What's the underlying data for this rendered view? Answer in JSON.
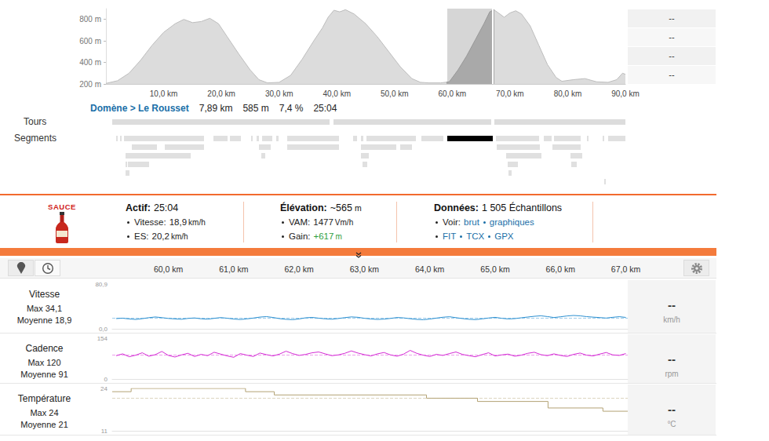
{
  "segment_header": {
    "name": "Domène > Le Rousset",
    "items": [
      "7,89 km",
      "585 m",
      "7,4 %",
      "25:04"
    ]
  },
  "side_panel": [
    "--",
    "--",
    "--",
    "--"
  ],
  "track_labels": {
    "tours": "Tours",
    "segments": "Segments"
  },
  "highlight": [
    59.14,
    67.03
  ],
  "tours": [
    [
      1.1,
      38.7
    ],
    [
      39.4,
      66.8
    ],
    [
      67.3,
      90.0
    ]
  ],
  "segments": [
    [
      [
        1.8,
        2.0
      ],
      [
        2.4,
        2.7
      ],
      [
        3.1,
        17.0
      ],
      [
        18.6,
        21.1
      ],
      [
        21.5,
        23.4
      ],
      [
        25.2,
        25.4
      ],
      [
        26.1,
        26.5
      ],
      [
        27.1,
        28.8
      ],
      [
        29.5,
        29.9
      ],
      [
        31.4,
        40.4
      ],
      [
        42.8,
        43.5
      ],
      [
        44.2,
        44.6
      ],
      [
        45.1,
        53.7
      ],
      [
        54.7,
        58.5
      ],
      [
        67.6,
        75.0
      ],
      [
        75.9,
        77.2
      ],
      [
        77.6,
        82.2
      ],
      [
        83.3,
        83.6
      ],
      [
        86.1,
        86.3
      ],
      [
        87.0,
        90.0
      ]
    ],
    [
      [
        4.5,
        8.8
      ],
      [
        10.2,
        17.0
      ],
      [
        26.5,
        28.5
      ],
      [
        31.4,
        40.4
      ],
      [
        44.2,
        50.3
      ],
      [
        51.0,
        53.0
      ],
      [
        67.7,
        75.2
      ],
      [
        77.4,
        82.2
      ]
    ],
    [
      [
        3.4,
        14.7
      ],
      [
        26.9,
        27.6
      ],
      [
        44.2,
        45.5
      ],
      [
        69.3,
        75.4
      ],
      [
        80.5,
        82.5
      ]
    ],
    [
      [
        3.4,
        3.7
      ],
      [
        3.8,
        7.5
      ],
      [
        44.5,
        45.3
      ],
      [
        69.6,
        71.4
      ],
      [
        80.6,
        81.6
      ]
    ],
    [
      [
        3.4,
        4.1
      ],
      [
        69.7,
        70.3
      ]
    ],
    [
      [
        86.3,
        86.6
      ]
    ]
  ],
  "logo": "SAUCE",
  "stats": [
    {
      "label": "Actif:",
      "value": "25:04",
      "rows": [
        {
          "label": "Vitesse:",
          "value": "18,9",
          "unit": "km/h"
        },
        {
          "label": "ES:",
          "value": "20,2",
          "unit": "km/h"
        }
      ]
    },
    {
      "label": "Élévation:",
      "value": "~565",
      "unit": "m",
      "rows": [
        {
          "label": "VAM:",
          "value": "1477",
          "unit": "Vm/h"
        },
        {
          "label": "Gain:",
          "value": "+617",
          "unit": "m",
          "color": "#2e9e3e"
        }
      ]
    },
    {
      "label": "Données:",
      "value": "1 505 Échantillons",
      "rows": [
        {
          "label": "Voir:",
          "links": [
            "brut",
            "graphiques"
          ]
        },
        {
          "links": [
            "FIT",
            "TCX",
            "GPX"
          ]
        }
      ]
    }
  ],
  "chart_data": [
    {
      "type": "area",
      "color": "#dcdcdc",
      "x": [
        0,
        2,
        4,
        6,
        8,
        10,
        12,
        13.5,
        15,
        16.5,
        18,
        19.5,
        21,
        23,
        25,
        26.5,
        28,
        30,
        32,
        34,
        36,
        37.5,
        38.5,
        39.5,
        40.5,
        41.5,
        43,
        45,
        47,
        49,
        51,
        53,
        54.5,
        56,
        58,
        59.5,
        61,
        62.5,
        64,
        65.5,
        66.5,
        67.2,
        68,
        69,
        70,
        71,
        72,
        73.5,
        75,
        76.5,
        78,
        79,
        81,
        83,
        85,
        87,
        88.5,
        89.5,
        90
      ],
      "values": [
        205,
        230,
        300,
        420,
        560,
        680,
        760,
        800,
        770,
        780,
        810,
        760,
        640,
        480,
        330,
        240,
        210,
        215,
        280,
        430,
        600,
        720,
        820,
        885,
        870,
        890,
        850,
        760,
        640,
        500,
        360,
        250,
        215,
        210,
        210,
        220,
        330,
        460,
        610,
        760,
        870,
        890,
        860,
        820,
        860,
        880,
        850,
        740,
        560,
        380,
        260,
        225,
        240,
        250,
        220,
        215,
        240,
        300,
        290
      ],
      "xlim": [
        0,
        90
      ],
      "xticks": [
        {
          "value": 10,
          "label": "10,0 km"
        },
        {
          "value": 20,
          "label": "20,0 km"
        },
        {
          "value": 30,
          "label": "30,0 km"
        },
        {
          "value": 40,
          "label": "40,0 km"
        },
        {
          "value": 50,
          "label": "50,0 km"
        },
        {
          "value": 60,
          "label": "60,0 km"
        },
        {
          "value": 70,
          "label": "70,0 km"
        },
        {
          "value": 80,
          "label": "80,0 km"
        },
        {
          "value": 90,
          "label": "90,0 km"
        }
      ],
      "ylim": [
        200,
        900
      ],
      "yticks": [
        {
          "value": 200,
          "label": "200 m"
        },
        {
          "value": 400,
          "label": "400 m"
        },
        {
          "value": 600,
          "label": "600 m"
        },
        {
          "value": 800,
          "label": "800 m"
        }
      ]
    },
    {
      "type": "line",
      "title": "Vitesse",
      "max_label": "Max 34,1",
      "mean_label": "Moyenne 18,9",
      "mean": 18.9,
      "unit": "km/h",
      "readout": "--",
      "color": "#2b8fd0",
      "x": [
        59.2,
        59.3,
        59.4,
        59.5,
        59.6,
        59.7,
        59.8,
        59.9,
        60.0,
        60.1,
        60.2,
        60.3,
        60.4,
        60.5,
        60.6,
        60.7,
        60.8,
        60.9,
        61.0,
        61.1,
        61.2,
        61.3,
        61.4,
        61.5,
        61.6,
        61.7,
        61.8,
        61.9,
        62.0,
        62.1,
        62.2,
        62.3,
        62.4,
        62.5,
        62.6,
        62.7,
        62.8,
        62.9,
        63.0,
        63.1,
        63.2,
        63.3,
        63.4,
        63.5,
        63.6,
        63.7,
        63.8,
        63.9,
        64.0,
        64.1,
        64.2,
        64.3,
        64.4,
        64.5,
        64.6,
        64.7,
        64.8,
        64.9,
        65.0,
        65.1,
        65.2,
        65.3,
        65.4,
        65.5,
        65.6,
        65.7,
        65.8,
        65.9,
        66.0,
        66.1,
        66.2,
        66.3,
        66.4,
        66.5,
        66.6,
        66.7,
        66.8,
        66.9,
        67.0
      ],
      "values": [
        18.5,
        19.2,
        17.8,
        16.9,
        18.3,
        20.1,
        21.4,
        20.2,
        18.7,
        17.9,
        17.2,
        18.8,
        19.6,
        18.1,
        17.4,
        18.9,
        20.3,
        19.1,
        17.6,
        16.8,
        17.9,
        19.4,
        21.2,
        22.0,
        20.5,
        18.4,
        17.1,
        16.5,
        17.8,
        19.9,
        20.6,
        19.2,
        18.0,
        17.3,
        18.6,
        20.2,
        21.5,
        20.8,
        19.0,
        17.7,
        16.9,
        17.5,
        18.8,
        20.4,
        19.7,
        18.2,
        17.0,
        16.4,
        17.6,
        19.3,
        20.9,
        21.8,
        20.1,
        18.5,
        17.2,
        16.6,
        17.9,
        19.5,
        20.7,
        19.0,
        17.8,
        18.4,
        19.9,
        21.3,
        22.6,
        23.5,
        22.1,
        20.4,
        21.7,
        23.2,
        24.1,
        23.4,
        22.0,
        21.1,
        20.3,
        19.4,
        20.8,
        21.9,
        20.6
      ],
      "xlim": [
        59.14,
        67.03
      ],
      "xticks": [
        {
          "value": 60,
          "label": "60,0 km"
        },
        {
          "value": 61,
          "label": "61,0 km"
        },
        {
          "value": 62,
          "label": "62,0 km"
        },
        {
          "value": 63,
          "label": "63,0 km"
        },
        {
          "value": 64,
          "label": "64,0 km"
        },
        {
          "value": 65,
          "label": "65,0 km"
        },
        {
          "value": 66,
          "label": "66,0 km"
        },
        {
          "value": 67,
          "label": "67,0 km"
        }
      ],
      "ylim": [
        0,
        80.9
      ],
      "yticks": [
        {
          "value": 0,
          "label": "0,0"
        },
        {
          "value": 80.9,
          "label": "80,9"
        }
      ]
    },
    {
      "type": "line",
      "title": "Cadence",
      "max_label": "Max 120",
      "mean_label": "Moyenne 91",
      "mean": 91,
      "unit": "rpm",
      "readout": "--",
      "color": "#d42ad4",
      "x": [
        59.2,
        59.3,
        59.4,
        59.5,
        59.6,
        59.7,
        59.8,
        59.9,
        60.0,
        60.1,
        60.2,
        60.3,
        60.4,
        60.5,
        60.6,
        60.7,
        60.8,
        60.9,
        61.0,
        61.1,
        61.2,
        61.3,
        61.4,
        61.5,
        61.6,
        61.7,
        61.8,
        61.9,
        62.0,
        62.1,
        62.2,
        62.3,
        62.4,
        62.5,
        62.6,
        62.7,
        62.8,
        62.9,
        63.0,
        63.1,
        63.2,
        63.3,
        63.4,
        63.5,
        63.6,
        63.7,
        63.8,
        63.9,
        64.0,
        64.1,
        64.2,
        64.3,
        64.4,
        64.5,
        64.6,
        64.7,
        64.8,
        64.9,
        65.0,
        65.1,
        65.2,
        65.3,
        65.4,
        65.5,
        65.6,
        65.7,
        65.8,
        65.9,
        66.0,
        66.1,
        66.2,
        66.3,
        66.4,
        66.5,
        66.6,
        66.7,
        66.8,
        66.9,
        67.0
      ],
      "values": [
        88,
        95,
        84,
        90,
        99,
        86,
        92,
        104,
        89,
        83,
        91,
        97,
        85,
        93,
        88,
        101,
        94,
        87,
        82,
        96,
        90,
        85,
        98,
        92,
        87,
        94,
        105,
        96,
        89,
        93,
        99,
        102,
        95,
        88,
        91,
        97,
        106,
        98,
        92,
        87,
        95,
        100,
        91,
        86,
        94,
        108,
        97,
        90,
        85,
        93,
        89,
        96,
        102,
        93,
        88,
        84,
        92,
        99,
        87,
        91,
        94,
        86,
        90,
        97,
        101,
        92,
        88,
        95,
        89,
        85,
        93,
        98,
        90,
        87,
        94,
        100,
        91,
        89,
        96
      ],
      "xlim": [
        59.14,
        67.03
      ],
      "ylim": [
        0,
        154
      ],
      "yticks": [
        0,
        154
      ]
    },
    {
      "type": "line",
      "line_style": "step",
      "title": "Température",
      "max_label": "Max 24",
      "mean_label": "Moyenne 21",
      "mean": 21,
      "unit": "°C",
      "readout": "--",
      "color": "#b3a274",
      "x": [
        59.14,
        59.43,
        61.18,
        61.62,
        63.95,
        64.73,
        65.81,
        66.65,
        67.03
      ],
      "values": [
        23,
        24,
        23,
        22,
        21,
        20,
        18,
        17,
        17
      ],
      "xlim": [
        59.14,
        67.03
      ],
      "ylim": [
        11,
        24
      ],
      "yticks": [
        11,
        24
      ]
    }
  ]
}
